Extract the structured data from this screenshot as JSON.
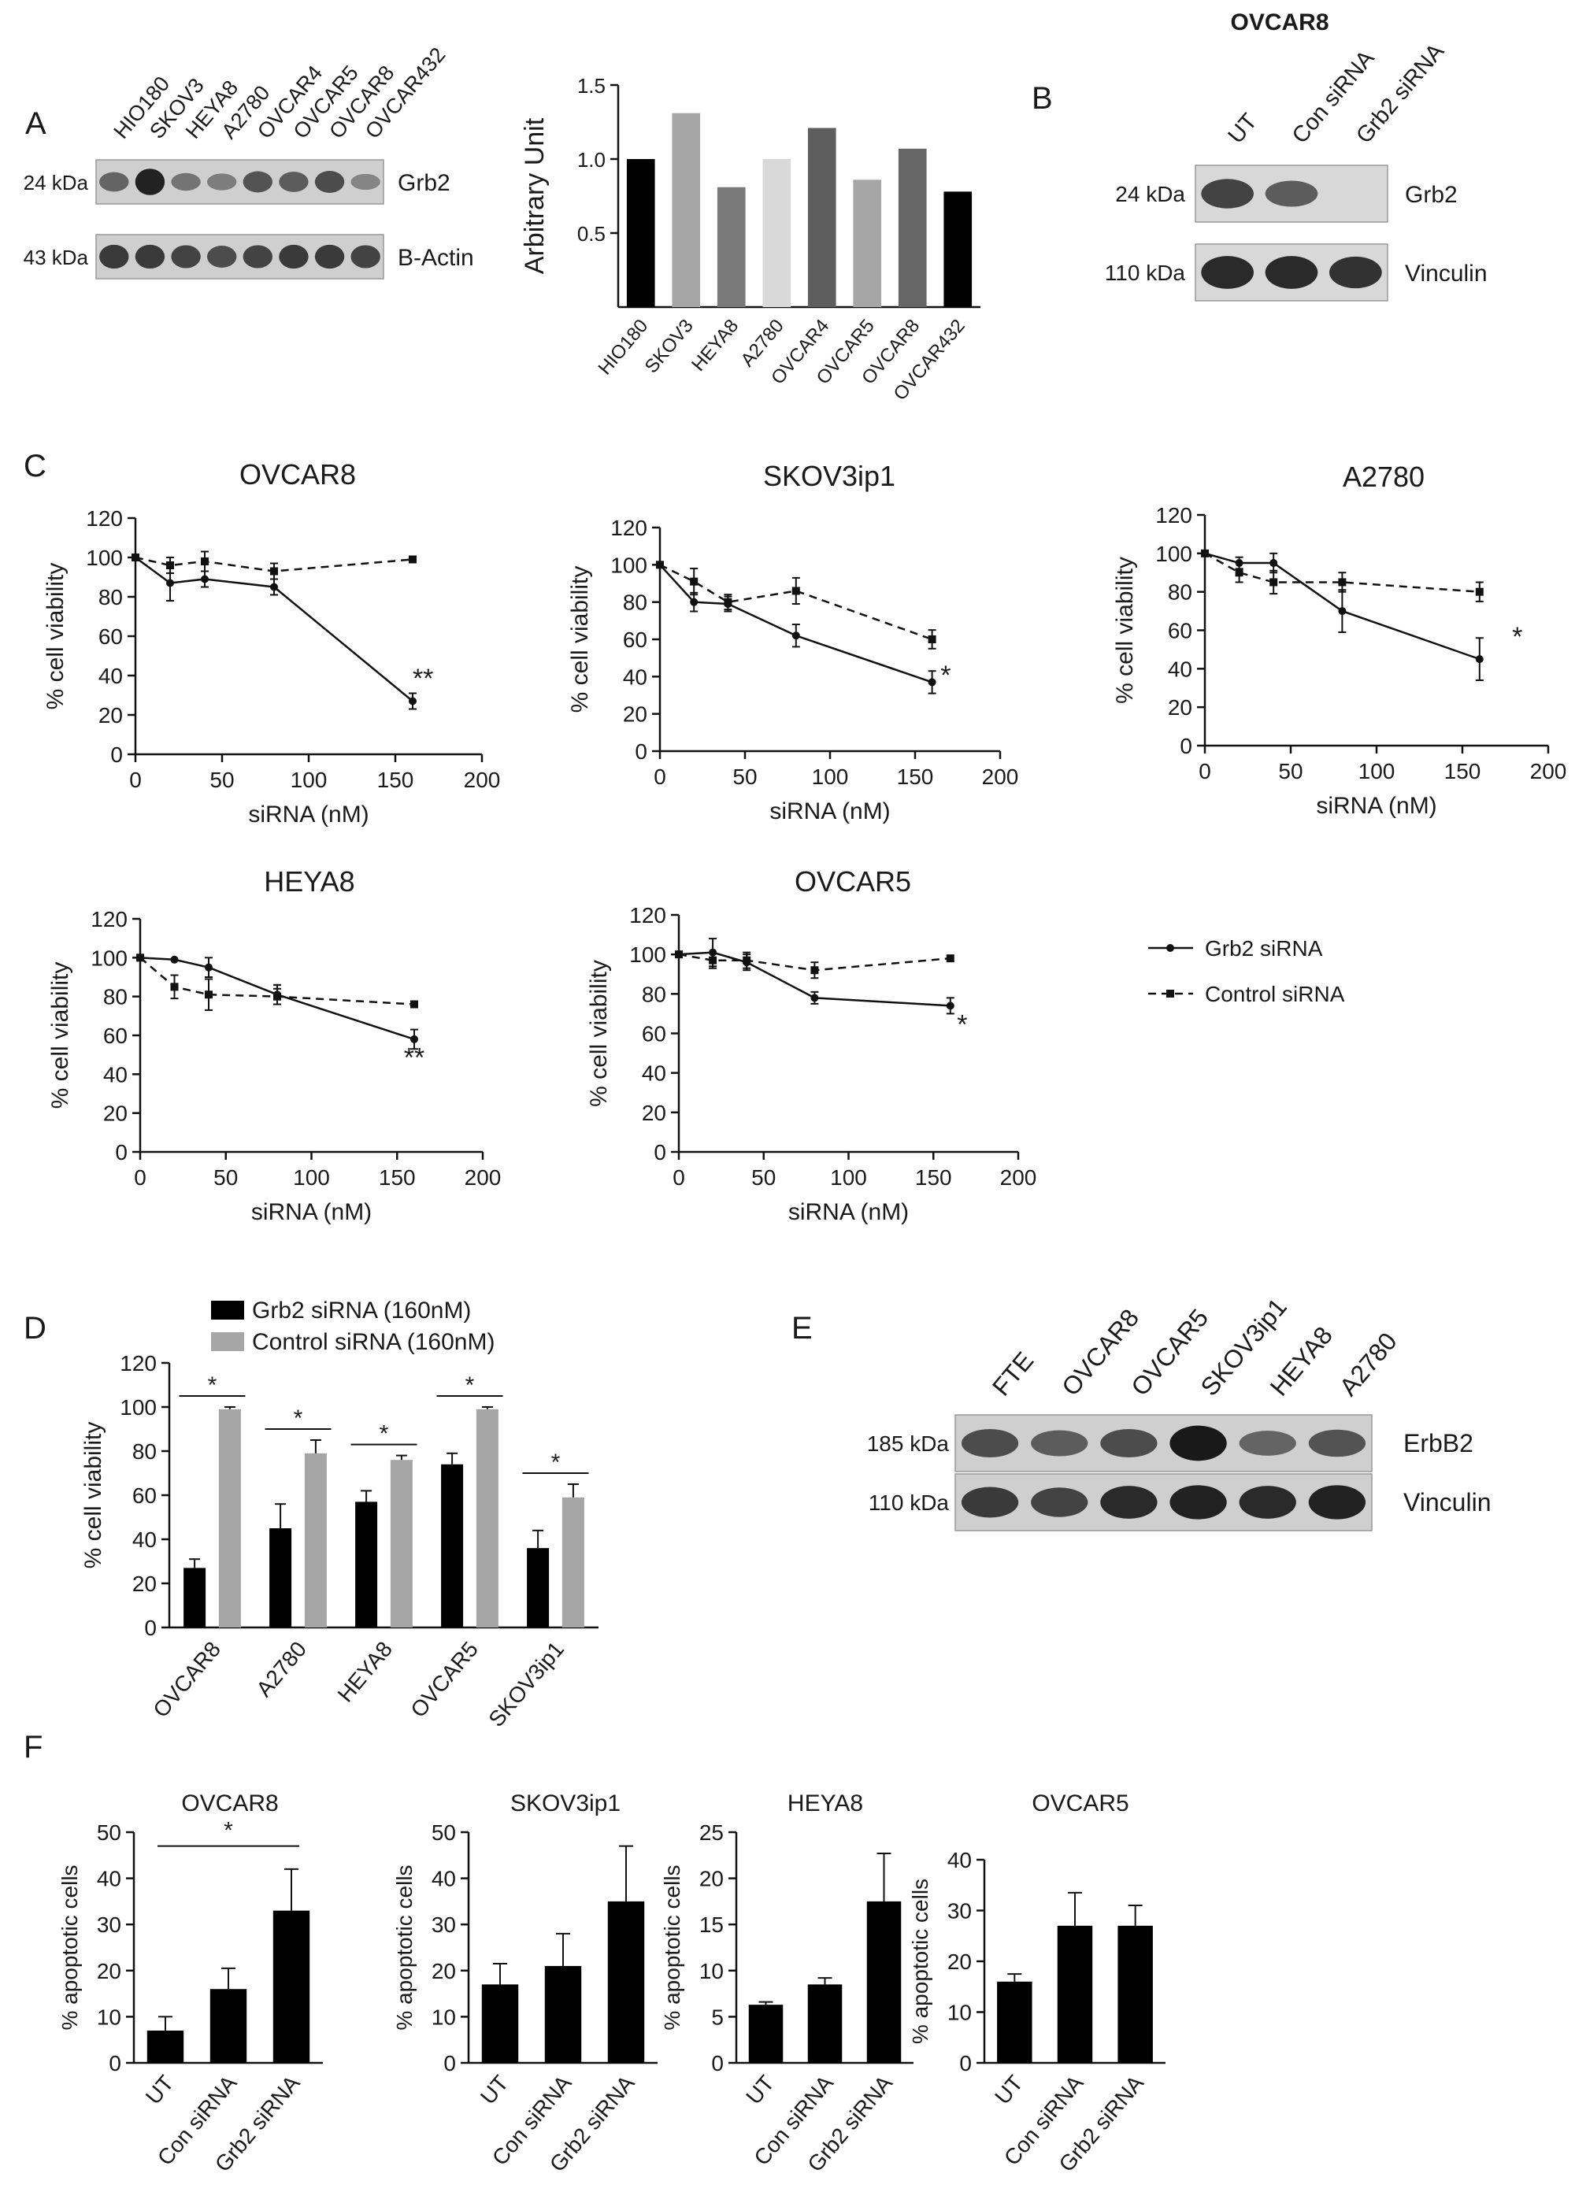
{
  "panel_labels": [
    "A",
    "B",
    "C",
    "D",
    "E",
    "F"
  ],
  "blots": {
    "A": {
      "lanes": [
        "HIO180",
        "SKOV3",
        "HEYA8",
        "A2780",
        "OVCAR4",
        "OVCAR5",
        "OVCAR8",
        "OVCAR432"
      ],
      "rows": [
        {
          "mw": "24 kDa",
          "name": "Grb2",
          "intensity": [
            0.55,
            0.95,
            0.45,
            0.4,
            0.65,
            0.6,
            0.7,
            0.35
          ]
        },
        {
          "mw": "43 kDa",
          "name": "B-Actin",
          "intensity": [
            0.8,
            0.8,
            0.75,
            0.7,
            0.75,
            0.8,
            0.8,
            0.75
          ]
        }
      ]
    },
    "B": {
      "title": "OVCAR8",
      "lanes": [
        "UT",
        "Con siRNA",
        "Grb2 siRNA"
      ],
      "rows": [
        {
          "mw": "24 kDa",
          "name": "Grb2",
          "intensity": [
            0.75,
            0.6,
            0.0
          ]
        },
        {
          "mw": "110 kDa",
          "name": "Vinculin",
          "intensity": [
            0.9,
            0.9,
            0.85
          ]
        }
      ]
    },
    "E": {
      "lanes": [
        "FTE",
        "OVCAR8",
        "OVCAR5",
        "SKOV3ip1",
        "HEYA8",
        "A2780"
      ],
      "rows": [
        {
          "mw": "185 kDa",
          "name": "ErbB2",
          "intensity": [
            0.7,
            0.6,
            0.7,
            1.0,
            0.55,
            0.65
          ]
        },
        {
          "mw": "110 kDa",
          "name": "Vinculin",
          "intensity": [
            0.8,
            0.75,
            0.9,
            0.95,
            0.9,
            0.95
          ]
        }
      ]
    }
  },
  "chart_data": [
    {
      "id": "A-bar",
      "type": "bar",
      "ylabel": "Arbitrary Unit",
      "ylim": [
        0,
        1.5
      ],
      "yticks": [
        0.5,
        1.0,
        1.5
      ],
      "categories": [
        "HIO180",
        "SKOV3",
        "HEYA8",
        "A2780",
        "OVCAR4",
        "OVCAR5",
        "OVCAR8",
        "OVCAR432"
      ],
      "values": [
        1.0,
        1.31,
        0.81,
        1.0,
        1.21,
        0.86,
        1.07,
        0.78
      ],
      "colors": [
        "#000000",
        "#a6a6a6",
        "#7a7a7a",
        "#d9d9d9",
        "#5e5e5e",
        "#a6a6a6",
        "#666666",
        "#000000"
      ]
    },
    {
      "id": "C-OVCAR8",
      "type": "line",
      "title": "OVCAR8",
      "xlabel": "siRNA (nM)",
      "ylabel": "% cell viability",
      "xlim": [
        0,
        200
      ],
      "ylim": [
        0,
        120
      ],
      "xticks": [
        0,
        50,
        100,
        150,
        200
      ],
      "yticks": [
        0,
        20,
        40,
        60,
        80,
        100,
        120
      ],
      "series": [
        {
          "name": "Grb2 siRNA",
          "x": [
            0,
            20,
            40,
            80,
            160
          ],
          "y": [
            100,
            87,
            89,
            85,
            27
          ],
          "err": [
            0,
            9,
            4,
            4,
            4
          ]
        },
        {
          "name": "Control siRNA",
          "x": [
            0,
            20,
            40,
            80,
            160
          ],
          "y": [
            100,
            96,
            98,
            93,
            99
          ],
          "err": [
            0,
            4,
            5,
            4,
            0
          ]
        }
      ],
      "annotations": [
        {
          "text": "**",
          "x": 166,
          "y": 34
        }
      ]
    },
    {
      "id": "C-SKOV3ip1",
      "type": "line",
      "title": "SKOV3ip1",
      "xlabel": "siRNA (nM)",
      "ylabel": "% cell viability",
      "xlim": [
        0,
        200
      ],
      "ylim": [
        0,
        120
      ],
      "xticks": [
        0,
        50,
        100,
        150,
        200
      ],
      "yticks": [
        0,
        20,
        40,
        60,
        80,
        100,
        120
      ],
      "series": [
        {
          "name": "Grb2 siRNA",
          "x": [
            0,
            20,
            40,
            80,
            160
          ],
          "y": [
            100,
            80,
            79,
            62,
            37
          ],
          "err": [
            0,
            5,
            4,
            6,
            6
          ]
        },
        {
          "name": "Control siRNA",
          "x": [
            0,
            20,
            40,
            80,
            160
          ],
          "y": [
            100,
            91,
            80,
            86,
            60
          ],
          "err": [
            0,
            7,
            4,
            7,
            5
          ]
        }
      ],
      "annotations": [
        {
          "text": "*",
          "x": 168,
          "y": 36
        }
      ]
    },
    {
      "id": "C-A2780",
      "type": "line",
      "title": "A2780",
      "xlabel": "siRNA (nM)",
      "ylabel": "% cell viability",
      "xlim": [
        0,
        200
      ],
      "ylim": [
        0,
        120
      ],
      "xticks": [
        0,
        50,
        100,
        150,
        200
      ],
      "yticks": [
        0,
        20,
        40,
        60,
        80,
        100,
        120
      ],
      "series": [
        {
          "name": "Grb2 siRNA",
          "x": [
            0,
            20,
            40,
            80,
            160
          ],
          "y": [
            100,
            95,
            95,
            70,
            45
          ],
          "err": [
            0,
            3,
            5,
            11,
            11
          ]
        },
        {
          "name": "Control siRNA",
          "x": [
            0,
            20,
            40,
            80,
            160
          ],
          "y": [
            100,
            90,
            85,
            85,
            80
          ],
          "err": [
            0,
            5,
            6,
            5,
            5
          ]
        }
      ],
      "annotations": [
        {
          "text": "*",
          "x": 182,
          "y": 52
        }
      ]
    },
    {
      "id": "C-HEYA8",
      "type": "line",
      "title": "HEYA8",
      "xlabel": "siRNA (nM)",
      "ylabel": "% cell viability",
      "xlim": [
        0,
        200
      ],
      "ylim": [
        0,
        120
      ],
      "xticks": [
        0,
        50,
        100,
        150,
        200
      ],
      "yticks": [
        0,
        20,
        40,
        60,
        80,
        100,
        120
      ],
      "series": [
        {
          "name": "Grb2 siRNA",
          "x": [
            0,
            20,
            40,
            80,
            160
          ],
          "y": [
            100,
            99,
            95,
            81,
            58
          ],
          "err": [
            0,
            0,
            5,
            5,
            5
          ]
        },
        {
          "name": "Control siRNA",
          "x": [
            0,
            20,
            40,
            80,
            160
          ],
          "y": [
            100,
            85,
            81,
            80,
            76
          ],
          "err": [
            0,
            6,
            8,
            4,
            0
          ]
        }
      ],
      "annotations": [
        {
          "text": "**",
          "x": 160,
          "y": 44
        }
      ]
    },
    {
      "id": "C-OVCAR5",
      "type": "line",
      "title": "OVCAR5",
      "xlabel": "siRNA (nM)",
      "ylabel": "% cell viability",
      "xlim": [
        0,
        200
      ],
      "ylim": [
        0,
        120
      ],
      "xticks": [
        0,
        50,
        100,
        150,
        200
      ],
      "yticks": [
        0,
        20,
        40,
        60,
        80,
        100,
        120
      ],
      "series": [
        {
          "name": "Grb2 siRNA",
          "x": [
            0,
            20,
            40,
            80,
            160
          ],
          "y": [
            100,
            101,
            96,
            78,
            74
          ],
          "err": [
            0,
            7,
            4,
            3,
            4
          ]
        },
        {
          "name": "Control siRNA",
          "x": [
            0,
            20,
            40,
            80,
            160
          ],
          "y": [
            100,
            97,
            97,
            92,
            98
          ],
          "err": [
            0,
            4,
            4,
            4,
            0
          ]
        }
      ],
      "annotations": [
        {
          "text": "*",
          "x": 167,
          "y": 60
        }
      ]
    },
    {
      "id": "D",
      "type": "bar",
      "ylabel": "% cell viability",
      "ylim": [
        0,
        120
      ],
      "yticks": [
        0,
        20,
        40,
        60,
        80,
        100,
        120
      ],
      "categories": [
        "OVCAR8",
        "A2780",
        "HEYA8",
        "OVCAR5",
        "SKOV3ip1"
      ],
      "series": [
        {
          "name": "Grb2 siRNA (160nM)",
          "color": "#000000",
          "values": [
            27,
            45,
            57,
            74,
            36
          ],
          "err": [
            4,
            11,
            5,
            5,
            8
          ]
        },
        {
          "name": "Control siRNA (160nM)",
          "color": "#a6a6a6",
          "values": [
            99,
            79,
            76,
            99,
            59
          ],
          "err": [
            1,
            6,
            2,
            1,
            6
          ]
        }
      ],
      "significance": [
        "*",
        "*",
        "*",
        "*",
        "*"
      ]
    },
    {
      "id": "F-OVCAR8",
      "type": "bar",
      "title": "OVCAR8",
      "ylabel": "% apoptotic cells",
      "ylim": [
        0,
        50
      ],
      "yticks": [
        0,
        10,
        20,
        30,
        40,
        50
      ],
      "categories": [
        "UT",
        "Con siRNA",
        "Grb2 siRNA"
      ],
      "values": [
        7,
        16,
        33
      ],
      "err": [
        3,
        4.5,
        9
      ],
      "bracket": {
        "text": "*",
        "from": 0,
        "to": 2,
        "y": 47
      }
    },
    {
      "id": "F-SKOV3ip1",
      "type": "bar",
      "title": "SKOV3ip1",
      "ylabel": "% apoptotic cells",
      "ylim": [
        0,
        50
      ],
      "yticks": [
        0,
        10,
        20,
        30,
        40,
        50
      ],
      "categories": [
        "UT",
        "Con siRNA",
        "Grb2 siRNA"
      ],
      "values": [
        17,
        21,
        35
      ],
      "err": [
        4.5,
        7,
        12
      ]
    },
    {
      "id": "F-HEYA8",
      "type": "bar",
      "title": "HEYA8",
      "ylabel": "% apoptotic cells",
      "ylim": [
        0,
        25
      ],
      "yticks": [
        0,
        5,
        10,
        15,
        20,
        25
      ],
      "categories": [
        "UT",
        "Con siRNA",
        "Grb2 siRNA"
      ],
      "values": [
        6.3,
        8.5,
        17.5
      ],
      "err": [
        0.3,
        0.7,
        5.2
      ]
    },
    {
      "id": "F-OVCAR5",
      "type": "bar",
      "title": "OVCAR5",
      "ylabel": "% apoptotic cells",
      "ylim": [
        0,
        40
      ],
      "yticks": [
        0,
        10,
        20,
        30,
        40
      ],
      "categories": [
        "UT",
        "Con siRNA",
        "Grb2 siRNA"
      ],
      "values": [
        16,
        27,
        27
      ],
      "err": [
        1.5,
        6.5,
        4
      ]
    }
  ]
}
